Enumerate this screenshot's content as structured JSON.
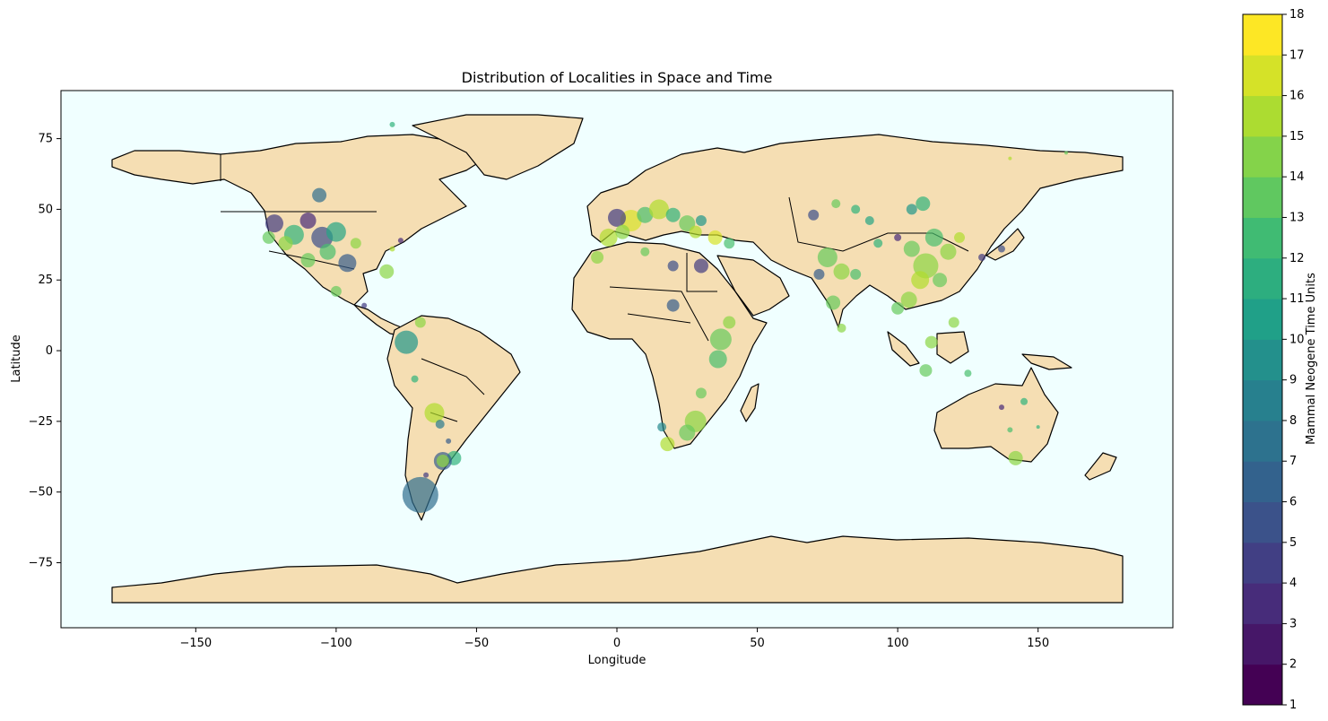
{
  "chart_data": [
    {
      "type": "scatter",
      "subtype": "geographic-bubble-map",
      "title": "Distribution of Localities in Space and Time",
      "xlabel": "Longitude",
      "ylabel": "Latitude",
      "xlim": [
        -198,
        198
      ],
      "ylim": [
        -98,
        92
      ],
      "xticks": [
        -150,
        -100,
        -50,
        0,
        50,
        100,
        150
      ],
      "yticks": [
        -75,
        -50,
        -25,
        0,
        25,
        50,
        75
      ],
      "xtick_labels": [
        "−150",
        "−100",
        "−50",
        "0",
        "50",
        "100",
        "150"
      ],
      "ytick_labels": [
        "−75",
        "−50",
        "−25",
        "0",
        "25",
        "50",
        "75"
      ],
      "grid": false,
      "colors": {
        "ocean": "#f0ffff",
        "land": "#f5deb3",
        "border": "#000000"
      },
      "colormap": "viridis",
      "colorbar": {
        "label": "Mammal Neogene Time Units",
        "min": 1,
        "max": 18,
        "levels": 17,
        "ticks": [
          1,
          2,
          3,
          4,
          5,
          6,
          7,
          8,
          9,
          10,
          11,
          12,
          13,
          14,
          15,
          16,
          17,
          18
        ],
        "tick_labels": [
          "1",
          "2",
          "3",
          "4",
          "5",
          "6",
          "7",
          "8",
          "9",
          "10",
          "11",
          "12",
          "13",
          "14",
          "15",
          "16",
          "17",
          "18"
        ]
      },
      "size_note": "",
      "points": [
        {
          "lon": -70,
          "lat": -51,
          "mn": 7,
          "size": 20
        },
        {
          "lon": -75,
          "lat": 3,
          "mn": 10,
          "size": 13
        },
        {
          "lon": -106,
          "lat": 55,
          "mn": 7,
          "size": 8
        },
        {
          "lon": -122,
          "lat": 45,
          "mn": 4,
          "size": 10
        },
        {
          "lon": -115,
          "lat": 41,
          "mn": 12,
          "size": 11
        },
        {
          "lon": -110,
          "lat": 46,
          "mn": 3,
          "size": 9
        },
        {
          "lon": -105,
          "lat": 40,
          "mn": 5,
          "size": 12
        },
        {
          "lon": -100,
          "lat": 42,
          "mn": 11,
          "size": 11
        },
        {
          "lon": -96,
          "lat": 31,
          "mn": 6,
          "size": 10
        },
        {
          "lon": -103,
          "lat": 35,
          "mn": 13,
          "size": 9
        },
        {
          "lon": -110,
          "lat": 32,
          "mn": 14,
          "size": 8
        },
        {
          "lon": -118,
          "lat": 38,
          "mn": 15,
          "size": 8
        },
        {
          "lon": -124,
          "lat": 40,
          "mn": 14,
          "size": 7
        },
        {
          "lon": -93,
          "lat": 38,
          "mn": 15,
          "size": 6
        },
        {
          "lon": -82,
          "lat": 28,
          "mn": 15,
          "size": 8
        },
        {
          "lon": -100,
          "lat": 21,
          "mn": 14,
          "size": 6
        },
        {
          "lon": -80,
          "lat": 36,
          "mn": 16,
          "size": 3
        },
        {
          "lon": -77,
          "lat": 39,
          "mn": 3,
          "size": 3
        },
        {
          "lon": -90,
          "lat": 16,
          "mn": 4,
          "size": 3
        },
        {
          "lon": -70,
          "lat": 10,
          "mn": 15,
          "size": 6
        },
        {
          "lon": -72,
          "lat": -10,
          "mn": 12,
          "size": 4
        },
        {
          "lon": -65,
          "lat": -22,
          "mn": 16,
          "size": 11
        },
        {
          "lon": -63,
          "lat": -26,
          "mn": 8,
          "size": 5
        },
        {
          "lon": -60,
          "lat": -32,
          "mn": 6,
          "size": 3
        },
        {
          "lon": -58,
          "lat": -38,
          "mn": 12,
          "size": 8
        },
        {
          "lon": -62,
          "lat": -39,
          "mn": 6,
          "size": 10
        },
        {
          "lon": -62,
          "lat": -39,
          "mn": 15,
          "size": 7
        },
        {
          "lon": -68,
          "lat": -44,
          "mn": 4,
          "size": 3
        },
        {
          "lon": 5,
          "lat": 46,
          "mn": 17,
          "size": 12
        },
        {
          "lon": 0,
          "lat": 47,
          "mn": 4,
          "size": 10
        },
        {
          "lon": 10,
          "lat": 48,
          "mn": 13,
          "size": 9
        },
        {
          "lon": 15,
          "lat": 50,
          "mn": 16,
          "size": 11
        },
        {
          "lon": 20,
          "lat": 48,
          "mn": 12,
          "size": 8
        },
        {
          "lon": -3,
          "lat": 40,
          "mn": 16,
          "size": 10
        },
        {
          "lon": 2,
          "lat": 42,
          "mn": 15,
          "size": 8
        },
        {
          "lon": 25,
          "lat": 45,
          "mn": 14,
          "size": 9
        },
        {
          "lon": 28,
          "lat": 42,
          "mn": 16,
          "size": 7
        },
        {
          "lon": 30,
          "lat": 46,
          "mn": 10,
          "size": 6
        },
        {
          "lon": 35,
          "lat": 40,
          "mn": 17,
          "size": 8
        },
        {
          "lon": 40,
          "lat": 38,
          "mn": 13,
          "size": 6
        },
        {
          "lon": -7,
          "lat": 33,
          "mn": 15,
          "size": 7
        },
        {
          "lon": 10,
          "lat": 35,
          "mn": 14,
          "size": 5
        },
        {
          "lon": 20,
          "lat": 30,
          "mn": 5,
          "size": 6
        },
        {
          "lon": 30,
          "lat": 30,
          "mn": 4,
          "size": 8
        },
        {
          "lon": 20,
          "lat": 16,
          "mn": 6,
          "size": 7
        },
        {
          "lon": 37,
          "lat": 4,
          "mn": 14,
          "size": 12
        },
        {
          "lon": 36,
          "lat": -3,
          "mn": 13,
          "size": 10
        },
        {
          "lon": 40,
          "lat": 10,
          "mn": 15,
          "size": 7
        },
        {
          "lon": 30,
          "lat": -15,
          "mn": 14,
          "size": 6
        },
        {
          "lon": 28,
          "lat": -25,
          "mn": 15,
          "size": 12
        },
        {
          "lon": 25,
          "lat": -29,
          "mn": 14,
          "size": 9
        },
        {
          "lon": 18,
          "lat": -33,
          "mn": 16,
          "size": 8
        },
        {
          "lon": 16,
          "lat": -27,
          "mn": 9,
          "size": 5
        },
        {
          "lon": 75,
          "lat": 33,
          "mn": 14,
          "size": 11
        },
        {
          "lon": 72,
          "lat": 27,
          "mn": 6,
          "size": 6
        },
        {
          "lon": 80,
          "lat": 28,
          "mn": 15,
          "size": 9
        },
        {
          "lon": 77,
          "lat": 17,
          "mn": 14,
          "size": 8
        },
        {
          "lon": 85,
          "lat": 27,
          "mn": 13,
          "size": 6
        },
        {
          "lon": 80,
          "lat": 8,
          "mn": 15,
          "size": 5
        },
        {
          "lon": 70,
          "lat": 48,
          "mn": 5,
          "size": 6
        },
        {
          "lon": 78,
          "lat": 52,
          "mn": 14,
          "size": 5
        },
        {
          "lon": 85,
          "lat": 50,
          "mn": 12,
          "size": 5
        },
        {
          "lon": 90,
          "lat": 46,
          "mn": 11,
          "size": 5
        },
        {
          "lon": 93,
          "lat": 38,
          "mn": 12,
          "size": 5
        },
        {
          "lon": 100,
          "lat": 40,
          "mn": 3,
          "size": 4
        },
        {
          "lon": 105,
          "lat": 36,
          "mn": 14,
          "size": 9
        },
        {
          "lon": 110,
          "lat": 30,
          "mn": 15,
          "size": 14
        },
        {
          "lon": 108,
          "lat": 25,
          "mn": 16,
          "size": 10
        },
        {
          "lon": 113,
          "lat": 40,
          "mn": 13,
          "size": 10
        },
        {
          "lon": 118,
          "lat": 35,
          "mn": 15,
          "size": 9
        },
        {
          "lon": 115,
          "lat": 25,
          "mn": 14,
          "size": 8
        },
        {
          "lon": 104,
          "lat": 18,
          "mn": 15,
          "size": 9
        },
        {
          "lon": 100,
          "lat": 15,
          "mn": 14,
          "size": 7
        },
        {
          "lon": 109,
          "lat": 52,
          "mn": 12,
          "size": 8
        },
        {
          "lon": 105,
          "lat": 50,
          "mn": 10,
          "size": 6
        },
        {
          "lon": 122,
          "lat": 40,
          "mn": 16,
          "size": 6
        },
        {
          "lon": 112,
          "lat": 3,
          "mn": 15,
          "size": 7
        },
        {
          "lon": 110,
          "lat": -7,
          "mn": 14,
          "size": 7
        },
        {
          "lon": 120,
          "lat": 10,
          "mn": 15,
          "size": 6
        },
        {
          "lon": 125,
          "lat": -8,
          "mn": 13,
          "size": 4
        },
        {
          "lon": 130,
          "lat": 33,
          "mn": 4,
          "size": 4
        },
        {
          "lon": 137,
          "lat": 36,
          "mn": 5,
          "size": 4
        },
        {
          "lon": 142,
          "lat": -38,
          "mn": 15,
          "size": 8
        },
        {
          "lon": 145,
          "lat": -18,
          "mn": 12,
          "size": 4
        },
        {
          "lon": 137,
          "lat": -20,
          "mn": 3,
          "size": 3
        },
        {
          "lon": 140,
          "lat": -28,
          "mn": 13,
          "size": 3
        },
        {
          "lon": 150,
          "lat": -27,
          "mn": 12,
          "size": 2
        },
        {
          "lon": 160,
          "lat": 70,
          "mn": 14,
          "size": 2
        },
        {
          "lon": 140,
          "lat": 68,
          "mn": 16,
          "size": 2
        },
        {
          "lon": -80,
          "lat": 80,
          "mn": 12,
          "size": 3
        }
      ]
    }
  ]
}
